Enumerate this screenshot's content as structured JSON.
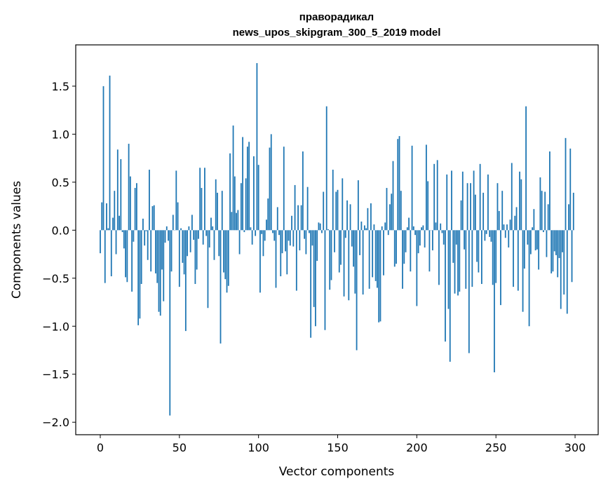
{
  "chart_data": {
    "type": "bar",
    "title_line1": "праворадикал",
    "title_line2": "news_upos_skipgram_300_5_2019 model",
    "xlabel": "Vector components",
    "ylabel": "Components values",
    "xlim": [
      -15.5,
      314.6
    ],
    "ylim": [
      -2.13,
      1.93
    ],
    "xticks": [
      0,
      50,
      100,
      150,
      200,
      250,
      300
    ],
    "xtick_labels": [
      "0",
      "50",
      "100",
      "150",
      "200",
      "250",
      "300"
    ],
    "yticks": [
      -2.0,
      -1.5,
      -1.0,
      -0.5,
      0.0,
      0.5,
      1.0,
      1.5
    ],
    "ytick_labels": [
      "−2.0",
      "−1.5",
      "−1.0",
      "−0.5",
      "0.0",
      "0.5",
      "1.0",
      "1.5"
    ],
    "grid": false,
    "color": "#1f77b4",
    "values": [
      -0.24,
      0.29,
      1.5,
      -0.55,
      0.28,
      0.02,
      1.61,
      -0.48,
      0.13,
      0.41,
      -0.25,
      0.84,
      0.15,
      0.74,
      -0.02,
      -0.19,
      -0.49,
      -0.54,
      0.9,
      0.56,
      -0.64,
      -0.12,
      0.44,
      0.49,
      -0.99,
      -0.92,
      -0.56,
      0.12,
      -0.16,
      -0.01,
      -0.31,
      0.63,
      -0.43,
      0.25,
      0.26,
      -0.45,
      -0.55,
      -0.85,
      -0.89,
      -0.41,
      -0.74,
      -0.13,
      0.04,
      -0.11,
      -1.93,
      -0.43,
      0.16,
      0.0,
      0.62,
      0.29,
      -0.59,
      0.02,
      -0.34,
      -0.46,
      -1.05,
      -0.27,
      0.04,
      -0.23,
      0.16,
      -0.1,
      -0.56,
      -0.41,
      -0.09,
      0.65,
      0.44,
      -0.15,
      0.65,
      -0.06,
      -0.81,
      -0.18,
      0.13,
      0.04,
      -0.31,
      0.53,
      0.39,
      -0.27,
      -1.18,
      0.41,
      -0.44,
      -0.51,
      -0.65,
      -0.58,
      0.8,
      0.19,
      1.09,
      0.56,
      0.18,
      0.21,
      -0.25,
      0.49,
      0.97,
      -0.02,
      0.54,
      0.87,
      0.92,
      0.03,
      -0.15,
      0.77,
      -0.06,
      1.74,
      0.68,
      -0.65,
      -0.04,
      -0.27,
      -0.11,
      0.11,
      0.33,
      0.86,
      1.0,
      -0.03,
      -0.11,
      -0.6,
      0.24,
      -0.05,
      -0.48,
      -0.24,
      0.87,
      -0.22,
      -0.46,
      -0.11,
      -0.16,
      0.15,
      -0.17,
      0.47,
      -0.63,
      0.26,
      -0.21,
      0.26,
      0.82,
      -0.09,
      -0.25,
      0.45,
      -0.03,
      -1.12,
      -0.16,
      -0.8,
      -1.0,
      -0.32,
      0.08,
      0.07,
      -0.03,
      0.4,
      -1.04,
      1.29,
      0.01,
      -0.62,
      -0.52,
      0.63,
      -0.23,
      0.4,
      0.42,
      -0.44,
      -0.36,
      0.54,
      -0.69,
      -0.08,
      0.31,
      -0.73,
      0.27,
      -0.17,
      -0.38,
      -0.66,
      -1.25,
      0.52,
      -0.26,
      0.09,
      -0.67,
      0.05,
      0.02,
      0.23,
      -0.61,
      0.28,
      -0.49,
      0.06,
      -0.53,
      -0.6,
      -0.96,
      -0.95,
      0.04,
      -0.47,
      0.08,
      0.44,
      -0.05,
      0.27,
      0.38,
      0.72,
      -0.38,
      -0.35,
      0.95,
      0.98,
      0.41,
      -0.61,
      -0.35,
      -0.23,
      0.03,
      0.13,
      -0.43,
      0.88,
      0.04,
      -0.05,
      -0.79,
      -0.24,
      -0.16,
      0.03,
      0.05,
      -0.18,
      0.89,
      0.51,
      -0.43,
      0.0,
      -0.21,
      0.69,
      0.08,
      0.73,
      -0.57,
      0.07,
      -0.03,
      -0.15,
      -1.16,
      0.58,
      -0.82,
      -1.37,
      0.62,
      -0.34,
      -0.66,
      -0.15,
      -0.68,
      -0.64,
      0.31,
      0.61,
      -0.2,
      -0.61,
      0.49,
      -1.28,
      0.49,
      -0.59,
      0.62,
      0.37,
      -0.33,
      -0.44,
      0.69,
      -0.56,
      0.39,
      -0.11,
      -0.04,
      0.58,
      -0.07,
      -0.12,
      -0.57,
      -1.48,
      -0.55,
      0.49,
      0.2,
      -0.78,
      0.41,
      0.06,
      -0.08,
      0.06,
      -0.18,
      0.11,
      0.7,
      -0.59,
      0.15,
      0.24,
      -0.63,
      0.61,
      0.53,
      -0.85,
      -0.4,
      1.29,
      -0.15,
      -1.0,
      -0.25,
      0.03,
      0.22,
      -0.21,
      -0.2,
      -0.41,
      0.55,
      0.41,
      -0.02,
      0.4,
      -0.28,
      0.27,
      0.82,
      -0.45,
      -0.43,
      -0.22,
      -0.26,
      -0.49,
      -0.29,
      -0.82,
      -0.23,
      -0.67,
      0.96,
      -0.87,
      0.27,
      0.85,
      -0.54,
      0.39
    ]
  }
}
